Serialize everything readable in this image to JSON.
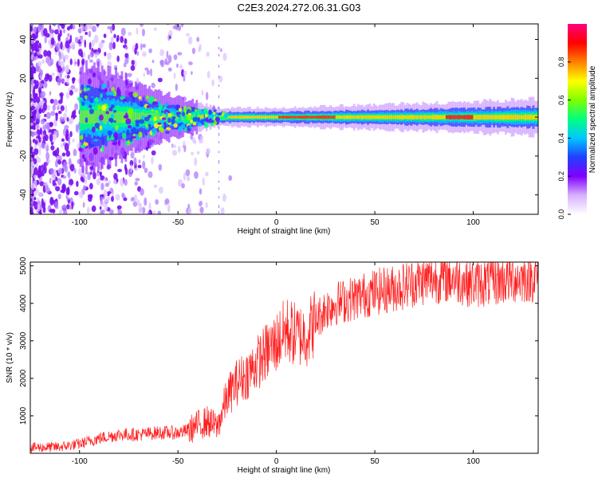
{
  "page": {
    "title": "C2E3.2024.272.06.31.G03"
  },
  "chart_data": [
    {
      "type": "heatmap",
      "xlabel": "Height of straight line (km)",
      "ylabel": "Frequency (Hz)",
      "xlim": [
        -125,
        133
      ],
      "ylim": [
        -50,
        48
      ],
      "xticks": [
        -100,
        -50,
        0,
        50,
        100
      ],
      "yticks": [
        -40,
        -20,
        0,
        20,
        40
      ],
      "colorbar": {
        "label": "Normalized spectral amplitude",
        "range": [
          0,
          1
        ],
        "ticks": [
          "0.0",
          "0.2",
          "0.4",
          "0.6",
          "0.8"
        ],
        "colors": [
          "#ffffff",
          "#d8b0ff",
          "#8000ff",
          "#2040ff",
          "#00c8ff",
          "#00ff80",
          "#80ff00",
          "#ffff00",
          "#ff8000",
          "#ff0000",
          "#ff0080"
        ]
      },
      "features": {
        "ridge_center_hz": 0,
        "ridge_halfwidth_hz_by_height": [
          [
            -90,
            8
          ],
          [
            -60,
            4
          ],
          [
            -30,
            1.5
          ],
          [
            0,
            1.5
          ],
          [
            50,
            2
          ],
          [
            100,
            2.5
          ],
          [
            133,
            3
          ]
        ],
        "noise_region_km": [
          -125,
          -28
        ]
      }
    },
    {
      "type": "line",
      "xlabel": "Height of straight line (km)",
      "ylabel": "SNR (10 * v/v)",
      "xlim": [
        -125,
        133
      ],
      "ylim": [
        0,
        5100
      ],
      "xticks": [
        -100,
        -50,
        0,
        50,
        100
      ],
      "yticks": [
        1000,
        2000,
        3000,
        4000,
        5000
      ],
      "color": "#ff2020",
      "series": [
        {
          "x": [
            -125,
            -110,
            -100,
            -90,
            -80,
            -70,
            -60,
            -50,
            -45,
            -40,
            -35,
            -30,
            -25,
            -20,
            -15,
            -10,
            -5,
            0,
            5,
            10,
            15,
            20,
            25,
            30,
            40,
            50,
            60,
            70,
            80,
            90,
            100,
            110,
            120,
            133
          ],
          "y": [
            150,
            170,
            250,
            400,
            500,
            500,
            550,
            550,
            600,
            750,
            850,
            700,
            1500,
            1900,
            2100,
            2400,
            2700,
            2950,
            3300,
            3150,
            3150,
            3550,
            3850,
            4000,
            4150,
            4300,
            4400,
            4550,
            4650,
            4680,
            4520,
            4580,
            4650,
            4700
          ]
        }
      ]
    }
  ]
}
